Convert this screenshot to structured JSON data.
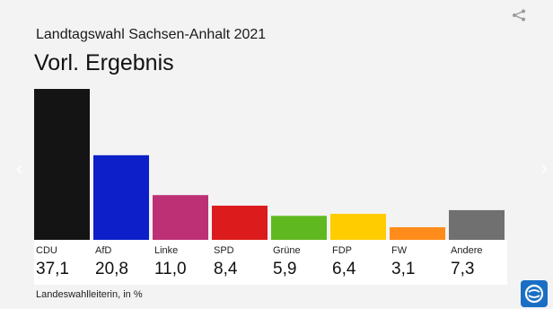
{
  "header": {
    "subtitle": "Landtagswahl Sachsen-Anhalt 2021",
    "title": "Vorl. Ergebnis"
  },
  "footer": {
    "source": "Landeswahlleiterin, in %"
  },
  "icons": {
    "share": "share-icon",
    "prev": "chevron-left-icon",
    "next": "chevron-right-icon",
    "logo": "tagesschau-logo-icon"
  },
  "nav": {
    "prev": "‹",
    "next": "›"
  },
  "colors": {
    "background": "#f3f3f3",
    "logo_bg": "#1a6fc4"
  },
  "chart_data": {
    "type": "bar",
    "categories": [
      "CDU",
      "AfD",
      "Linke",
      "SPD",
      "Grüne",
      "FDP",
      "FW",
      "Andere"
    ],
    "values": [
      37.1,
      20.8,
      11.0,
      8.4,
      5.9,
      6.4,
      3.1,
      7.3
    ],
    "value_labels": [
      "37,1",
      "20,8",
      "11,0",
      "8,4",
      "5,9",
      "6,4",
      "3,1",
      "7,3"
    ],
    "colors": [
      "#141414",
      "#0d1fc8",
      "#be3075",
      "#dc1c1c",
      "#60b820",
      "#ffcc00",
      "#ff8c1a",
      "#707070"
    ],
    "ylim": [
      0,
      37.1
    ],
    "grid": false,
    "xlabel": "",
    "ylabel": ""
  }
}
